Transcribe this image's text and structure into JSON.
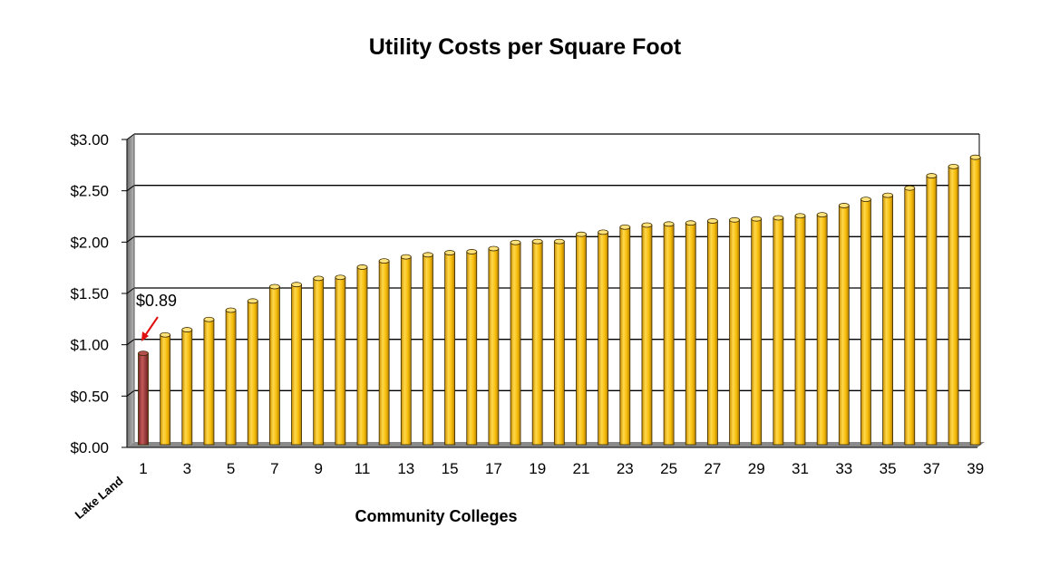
{
  "chart_data": {
    "type": "bar",
    "title": "Utility Costs per Square Foot",
    "xlabel": "Community Colleges",
    "ylabel": "",
    "ylim": [
      0,
      3
    ],
    "yticks": [
      "$0.00",
      "$0.50",
      "$1.00",
      "$1.50",
      "$2.00",
      "$2.50",
      "$3.00"
    ],
    "ytick_values": [
      0,
      0.5,
      1.0,
      1.5,
      2.0,
      2.5,
      3.0
    ],
    "categories": [
      1,
      2,
      3,
      4,
      5,
      6,
      7,
      8,
      9,
      10,
      11,
      12,
      13,
      14,
      15,
      16,
      17,
      18,
      19,
      20,
      21,
      22,
      23,
      24,
      25,
      26,
      27,
      28,
      29,
      30,
      31,
      32,
      33,
      34,
      35,
      36,
      37,
      38,
      39
    ],
    "xtick_labels": [
      "1",
      "3",
      "5",
      "7",
      "9",
      "11",
      "13",
      "15",
      "17",
      "19",
      "21",
      "23",
      "25",
      "27",
      "29",
      "31",
      "33",
      "35",
      "37",
      "39"
    ],
    "values": [
      0.89,
      1.07,
      1.12,
      1.22,
      1.31,
      1.4,
      1.54,
      1.56,
      1.62,
      1.63,
      1.73,
      1.79,
      1.83,
      1.85,
      1.87,
      1.88,
      1.91,
      1.97,
      1.98,
      1.98,
      2.05,
      2.07,
      2.12,
      2.14,
      2.15,
      2.16,
      2.18,
      2.19,
      2.2,
      2.21,
      2.23,
      2.24,
      2.33,
      2.39,
      2.43,
      2.5,
      2.62,
      2.71,
      2.8
    ],
    "grid": true,
    "highlight": {
      "index": 0,
      "category_label": "Lake Land",
      "annotation": "$0.89",
      "color": "#a33a3a"
    },
    "bar_color": "#f5bb0a"
  }
}
